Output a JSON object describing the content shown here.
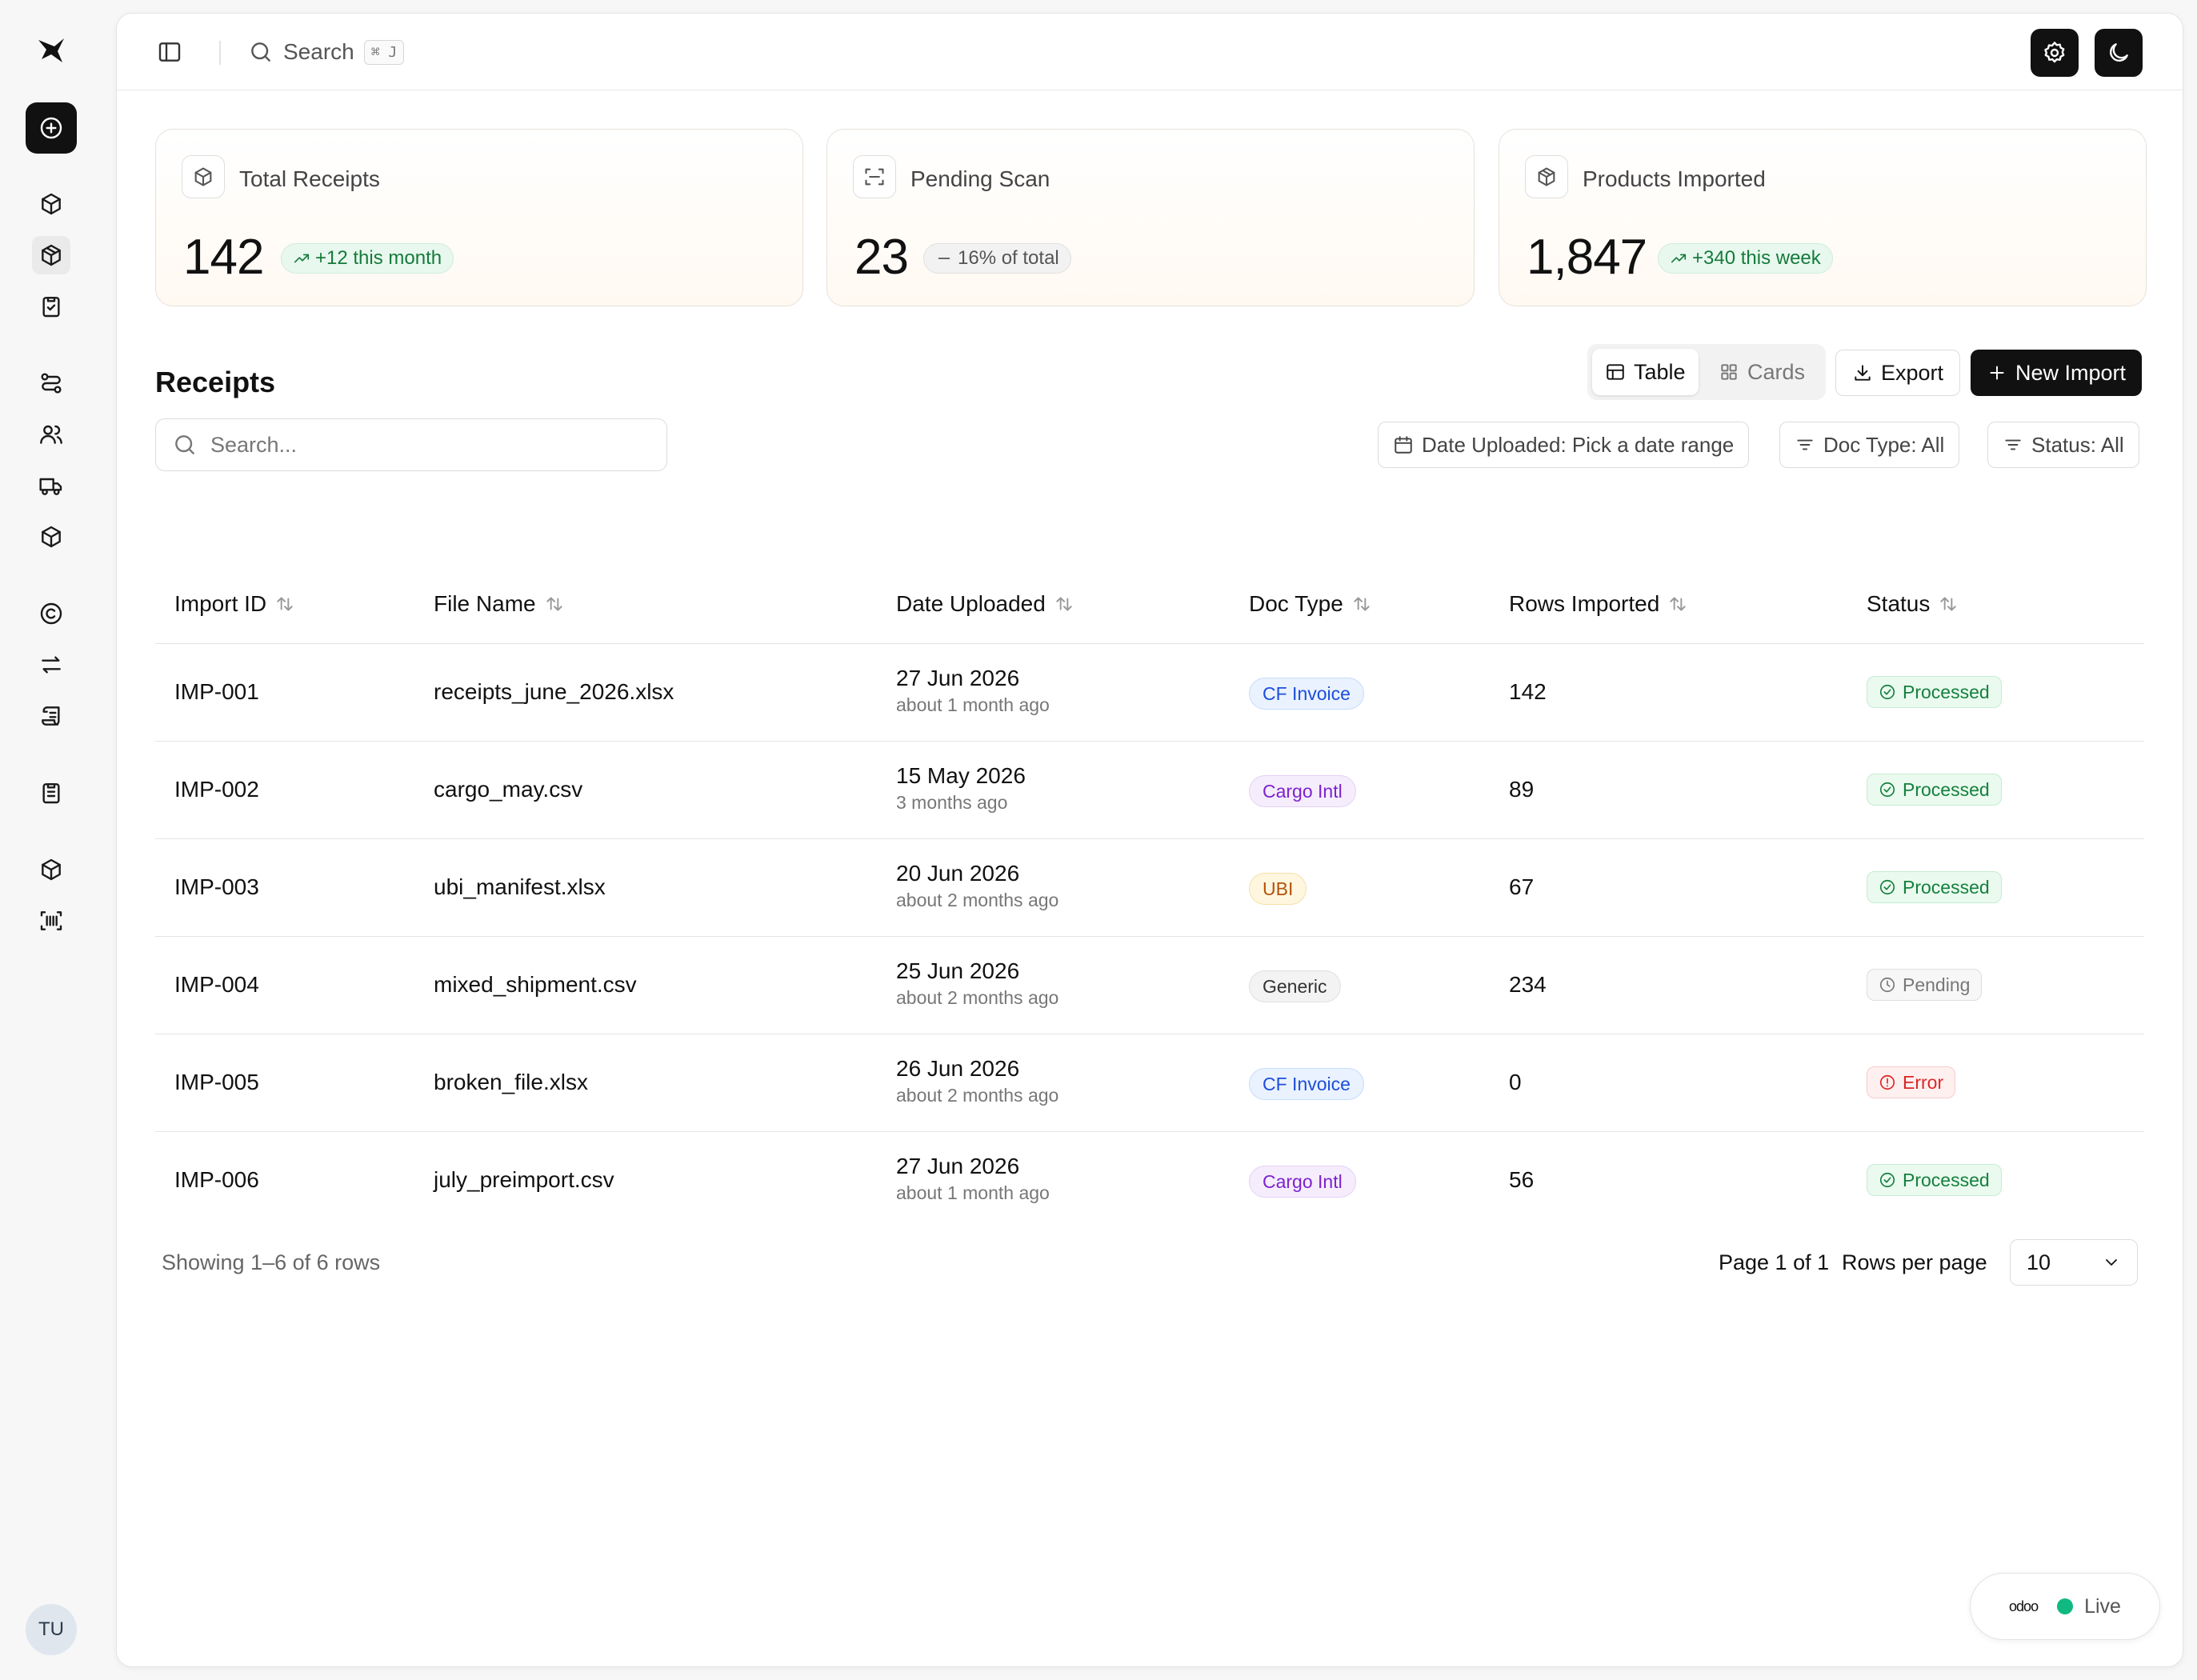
{
  "topbar": {
    "search_label": "Search",
    "search_shortcut": "⌘ J"
  },
  "rail": {
    "avatar_initials": "TU"
  },
  "stats": [
    {
      "label": "Total Receipts",
      "value": "142",
      "delta": "+12 this month",
      "trend": "up"
    },
    {
      "label": "Pending Scan",
      "value": "23",
      "delta": "16% of total",
      "trend": "flat"
    },
    {
      "label": "Products Imported",
      "value": "1,847",
      "delta": "+340 this week",
      "trend": "up"
    }
  ],
  "section": {
    "title": "Receipts",
    "view_table": "Table",
    "view_cards": "Cards",
    "export_label": "Export",
    "new_import_label": "New Import"
  },
  "filters": {
    "search_placeholder": "Search...",
    "date_filter": "Date Uploaded: Pick a date range",
    "doctype_filter": "Doc Type: All",
    "status_filter": "Status: All"
  },
  "table": {
    "columns": [
      "Import ID",
      "File Name",
      "Date Uploaded",
      "Doc Type",
      "Rows Imported",
      "Status"
    ],
    "rows": [
      {
        "id": "IMP-001",
        "file": "receipts_june_2026.xlsx",
        "date": "27 Jun 2026",
        "ago": "about 1 month ago",
        "doc_type": "CF Invoice",
        "rows": "142",
        "status": "Processed"
      },
      {
        "id": "IMP-002",
        "file": "cargo_may.csv",
        "date": "15 May 2026",
        "ago": "3 months ago",
        "doc_type": "Cargo Intl",
        "rows": "89",
        "status": "Processed"
      },
      {
        "id": "IMP-003",
        "file": "ubi_manifest.xlsx",
        "date": "20 Jun 2026",
        "ago": "about 2 months ago",
        "doc_type": "UBI",
        "rows": "67",
        "status": "Processed"
      },
      {
        "id": "IMP-004",
        "file": "mixed_shipment.csv",
        "date": "25 Jun 2026",
        "ago": "about 2 months ago",
        "doc_type": "Generic",
        "rows": "234",
        "status": "Pending"
      },
      {
        "id": "IMP-005",
        "file": "broken_file.xlsx",
        "date": "26 Jun 2026",
        "ago": "about 2 months ago",
        "doc_type": "CF Invoice",
        "rows": "0",
        "status": "Error"
      },
      {
        "id": "IMP-006",
        "file": "july_preimport.csv",
        "date": "27 Jun 2026",
        "ago": "about 1 month ago",
        "doc_type": "Cargo Intl",
        "rows": "56",
        "status": "Processed"
      }
    ]
  },
  "footer": {
    "showing": "Showing 1–6 of 6 rows",
    "page": "Page 1 of 1",
    "rows_per_page_label": "Rows per page",
    "rows_per_page_value": "10"
  },
  "live_badge": {
    "brand": "odoo",
    "label": "Live"
  },
  "colors": {
    "accent": "#111111",
    "live": "#10b981",
    "cf_invoice": {
      "bg": "#eaf2ff",
      "fg": "#1d4ed8",
      "border": "#c7dbfb"
    },
    "cargo_intl": {
      "bg": "#f5edfc",
      "fg": "#7e22ce",
      "border": "#e4d0f6"
    },
    "ubi": {
      "bg": "#fff6e0",
      "fg": "#b45309",
      "border": "#f6e0a6"
    },
    "generic": {
      "bg": "#f3f3f3",
      "fg": "#333333",
      "border": "#e0e0e0"
    },
    "processed": {
      "bg": "#eafaef",
      "fg": "#15803d",
      "border": "#c6ecd2"
    },
    "pending": {
      "bg": "#f7f7f7",
      "fg": "#777777",
      "border": "#dedede"
    },
    "error": {
      "bg": "#fff0f0",
      "fg": "#dc2626",
      "border": "#f6caca"
    }
  }
}
